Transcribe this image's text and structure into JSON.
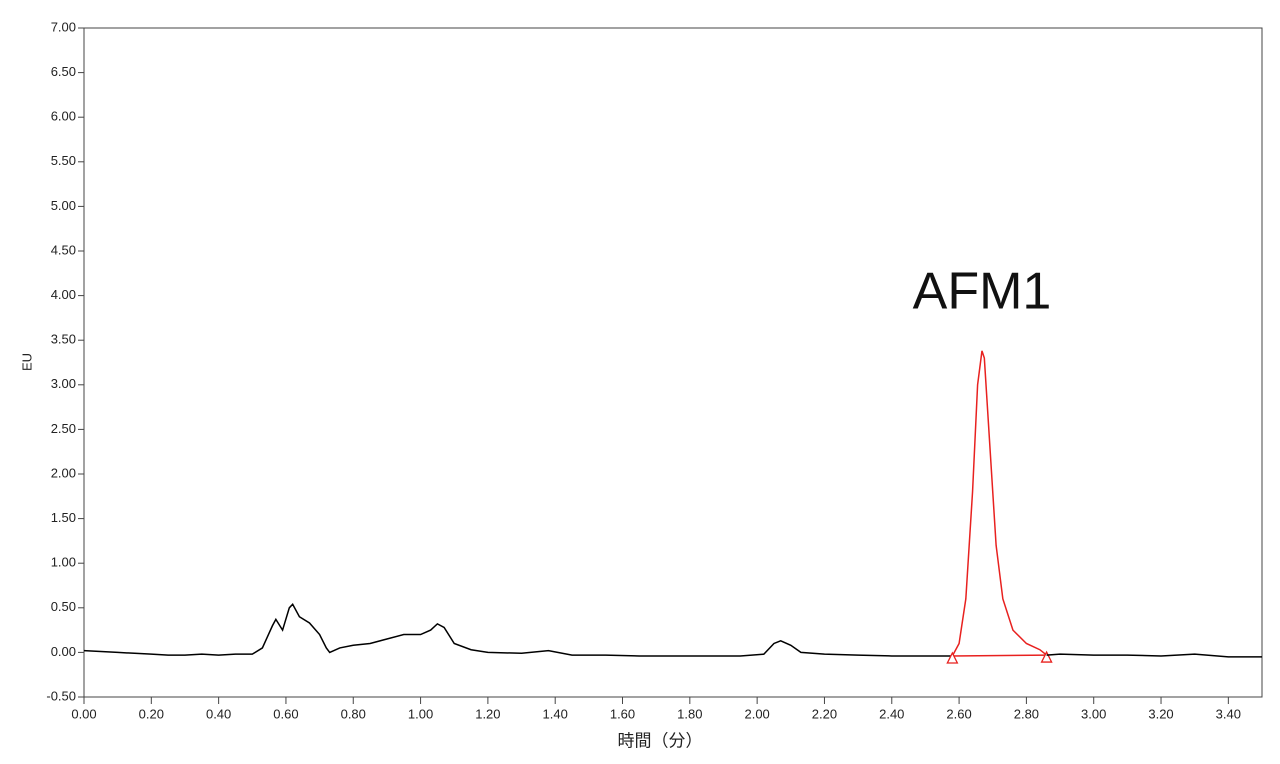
{
  "chart_data": {
    "type": "line",
    "xlabel": "時間（分）",
    "ylabel": "EU",
    "xlim": [
      0,
      3.5
    ],
    "ylim": [
      -0.5,
      7
    ],
    "xticks": [
      {
        "value": 0,
        "label": "0.00"
      },
      {
        "value": 0.2,
        "label": "0.20"
      },
      {
        "value": 0.4,
        "label": "0.40"
      },
      {
        "value": 0.6,
        "label": "0.60"
      },
      {
        "value": 0.8,
        "label": "0.80"
      },
      {
        "value": 1,
        "label": "1.00"
      },
      {
        "value": 1.2,
        "label": "1.20"
      },
      {
        "value": 1.4,
        "label": "1.40"
      },
      {
        "value": 1.6,
        "label": "1.60"
      },
      {
        "value": 1.8,
        "label": "1.80"
      },
      {
        "value": 2,
        "label": "2.00"
      },
      {
        "value": 2.2,
        "label": "2.20"
      },
      {
        "value": 2.4,
        "label": "2.40"
      },
      {
        "value": 2.6,
        "label": "2.60"
      },
      {
        "value": 2.8,
        "label": "2.80"
      },
      {
        "value": 3,
        "label": "3.00"
      },
      {
        "value": 3.2,
        "label": "3.20"
      },
      {
        "value": 3.4,
        "label": "3.40"
      }
    ],
    "yticks": [
      {
        "value": -0.5,
        "label": "-0.50"
      },
      {
        "value": 0,
        "label": "0.00"
      },
      {
        "value": 0.5,
        "label": "0.50"
      },
      {
        "value": 1,
        "label": "1.00"
      },
      {
        "value": 1.5,
        "label": "1.50"
      },
      {
        "value": 2,
        "label": "2.00"
      },
      {
        "value": 2.5,
        "label": "2.50"
      },
      {
        "value": 3,
        "label": "3.00"
      },
      {
        "value": 3.5,
        "label": "3.50"
      },
      {
        "value": 4,
        "label": "4.00"
      },
      {
        "value": 4.5,
        "label": "4.50"
      },
      {
        "value": 5,
        "label": "5.00"
      },
      {
        "value": 5.5,
        "label": "5.50"
      },
      {
        "value": 6,
        "label": "6.00"
      },
      {
        "value": 6.5,
        "label": "6.50"
      },
      {
        "value": 7,
        "label": "7.00"
      }
    ],
    "grid": false,
    "annotations": [
      {
        "text": "AFM1"
      }
    ],
    "series": [
      {
        "color": "#000000",
        "x": [
          0,
          0.05,
          0.1,
          0.15,
          0.2,
          0.25,
          0.3,
          0.35,
          0.4,
          0.45,
          0.5,
          0.53,
          0.56,
          0.57,
          0.59,
          0.61,
          0.62,
          0.64,
          0.67,
          0.7,
          0.72,
          0.73,
          0.76,
          0.8,
          0.85,
          0.9,
          0.95,
          1,
          1.03,
          1.05,
          1.07,
          1.1,
          1.15,
          1.2,
          1.3,
          1.38,
          1.45,
          1.55,
          1.65,
          1.75,
          1.85,
          1.95,
          2.02,
          2.05,
          2.07,
          2.1,
          2.13,
          2.2,
          2.3,
          2.4,
          2.5,
          2.58
        ],
        "values": [
          0.02,
          0.01,
          0,
          -0.01,
          -0.02,
          -0.03,
          -0.03,
          -0.02,
          -0.03,
          -0.02,
          -0.02,
          0.05,
          0.3,
          0.37,
          0.25,
          0.5,
          0.54,
          0.4,
          0.33,
          0.2,
          0.05,
          0,
          0.05,
          0.08,
          0.1,
          0.15,
          0.2,
          0.2,
          0.25,
          0.32,
          0.28,
          0.1,
          0.03,
          0,
          -0.01,
          0.02,
          -0.03,
          -0.03,
          -0.04,
          -0.04,
          -0.04,
          -0.04,
          -0.02,
          0.1,
          0.13,
          0.08,
          0,
          -0.02,
          -0.03,
          -0.04,
          -0.04,
          -0.04
        ]
      },
      {
        "color": "#e8211f",
        "x": [
          2.58,
          2.6,
          2.62,
          2.64,
          2.655,
          2.668,
          2.675,
          2.69,
          2.71,
          2.73,
          2.76,
          2.8,
          2.84,
          2.86
        ],
        "values": [
          -0.04,
          0.1,
          0.6,
          1.8,
          3,
          3.38,
          3.3,
          2.4,
          1.2,
          0.6,
          0.25,
          0.1,
          0.03,
          -0.03
        ]
      },
      {
        "color": "#e8211f",
        "marker": "triangle",
        "x": [
          2.58,
          2.86
        ],
        "values": [
          -0.04,
          -0.03
        ]
      },
      {
        "color": "#000000",
        "x": [
          2.86,
          2.9,
          3,
          3.1,
          3.2,
          3.3,
          3.4,
          3.5
        ],
        "values": [
          -0.03,
          -0.02,
          -0.03,
          -0.03,
          -0.04,
          -0.02,
          -0.05,
          -0.05
        ]
      }
    ]
  }
}
